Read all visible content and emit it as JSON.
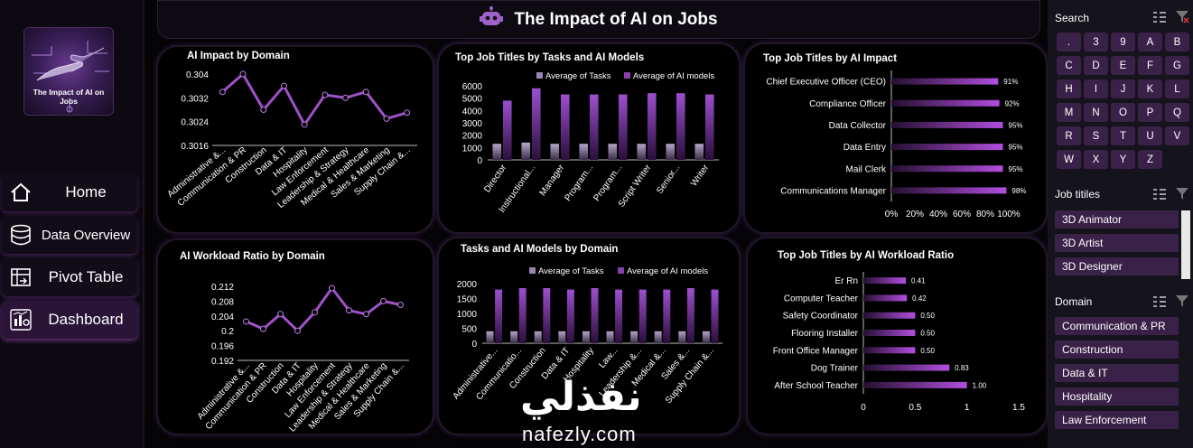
{
  "title": "The Impact of AI on Jobs",
  "logo_text": "The Impact of AI on Jobs",
  "nav": [
    {
      "label": "Home",
      "icon": "home-icon"
    },
    {
      "label": "Data Overview",
      "icon": "database-icon"
    },
    {
      "label": "Pivot Table",
      "icon": "pivot-icon"
    },
    {
      "label": "Dashboard",
      "icon": "dashboard-icon"
    }
  ],
  "slicers": {
    "search": {
      "title": "Search",
      "items": [
        ".",
        "3",
        "9",
        "A",
        "B",
        "C",
        "D",
        "E",
        "F",
        "G",
        "H",
        "I",
        "J",
        "K",
        "L",
        "M",
        "N",
        "O",
        "P",
        "Q",
        "R",
        "S",
        "T",
        "U",
        "V",
        "W",
        "X",
        "Y",
        "Z"
      ]
    },
    "job_titles": {
      "title": "Job titiles",
      "items": [
        "3D Animator",
        "3D Artist",
        "3D Designer"
      ]
    },
    "domain": {
      "title": "Domain",
      "items": [
        "Communication & PR",
        "Construction",
        "Data & IT",
        "Hospitality",
        "Law Enforcement"
      ]
    }
  },
  "watermark": {
    "arabic": "نفذلي",
    "latin": "nafezly.com"
  },
  "chart_data": [
    {
      "id": "impact_domain",
      "type": "line",
      "title": "AI Impact by Domain",
      "categories": [
        "Administrative &...",
        "Communication & PR",
        "Construction",
        "Data & IT",
        "Hospitality",
        "Law Enforcement",
        "Leadership & Strategy",
        "Medical & Healthcare",
        "Sales & Marketing",
        "Supply Chain &..."
      ],
      "values": [
        0.3034,
        0.304,
        0.3028,
        0.3036,
        0.3023,
        0.3033,
        0.3032,
        0.3034,
        0.3025,
        0.3027
      ],
      "ylim": [
        0.3016,
        0.304
      ],
      "yticks": [
        "0.304",
        "0.3032",
        "0.3024",
        "0.3016"
      ],
      "color": "#a050c8"
    },
    {
      "id": "tasks_models_job",
      "type": "bar",
      "title": "Top Job Titles by Tasks and AI Models",
      "categories": [
        "Director",
        "Instructional...",
        "Manager",
        "Program...",
        "Program...",
        "Script Writer",
        "Senior...",
        "Writer"
      ],
      "series": [
        {
          "name": "Average of Tasks",
          "values": [
            1300,
            1400,
            1300,
            1300,
            1300,
            1300,
            1300,
            1300
          ],
          "color": "#9b86b3"
        },
        {
          "name": "Average of AI models",
          "values": [
            4800,
            5800,
            5300,
            5300,
            5300,
            5400,
            5400,
            5300
          ],
          "color": "#8a3fb0"
        }
      ],
      "ylim": [
        0,
        6000
      ],
      "yticks": [
        "6000",
        "5000",
        "4000",
        "3000",
        "2000",
        "1000",
        "0"
      ]
    },
    {
      "id": "impact_job",
      "type": "bar",
      "title": "Top Job Titles by AI Impact",
      "categories": [
        "Chief Executive Officer (CEO)",
        "Compliance Officer",
        "Data Collector",
        "Data Entry",
        "Mail Clerk",
        "Communications Manager"
      ],
      "values": [
        0.91,
        0.92,
        0.95,
        0.95,
        0.95,
        0.98
      ],
      "labels": [
        "91%",
        "92%",
        "95%",
        "95%",
        "95%",
        "98%"
      ],
      "xticks": [
        "0%",
        "20%",
        "40%",
        "60%",
        "80%",
        "100%"
      ],
      "xlim": [
        0,
        1
      ]
    },
    {
      "id": "workload_domain",
      "type": "line",
      "title": "AI Workload Ratio by Domain",
      "categories": [
        "Administrative &...",
        "Communication & PR",
        "Construction",
        "Data & IT",
        "Hospitality",
        "Law Enforcement",
        "Leadership & Strategy",
        "Medical & Healthcare",
        "Sales & Marketing",
        "Supply Chain &..."
      ],
      "values": [
        0.2025,
        0.2005,
        0.2045,
        0.2,
        0.205,
        0.2115,
        0.2055,
        0.2045,
        0.208,
        0.207
      ],
      "ylim": [
        0.192,
        0.212
      ],
      "yticks": [
        "0.212",
        "0.208",
        "0.204",
        "0.2",
        "0.196",
        "0.192"
      ],
      "color": "#a050c8"
    },
    {
      "id": "tasks_models_domain",
      "type": "bar",
      "title": "Tasks and AI Models by Domain",
      "categories": [
        "Administrative...",
        "Communicatio...",
        "Construction",
        "Data & IT",
        "Hospitality",
        "Law...",
        "Leadership &...",
        "Medical &...",
        "Sales &...",
        "Supply Chain &..."
      ],
      "series": [
        {
          "name": "Average of Tasks",
          "values": [
            400,
            400,
            400,
            400,
            400,
            400,
            400,
            400,
            400,
            400
          ],
          "color": "#9b86b3"
        },
        {
          "name": "Average of AI models",
          "values": [
            1800,
            1850,
            1850,
            1800,
            1850,
            1800,
            1800,
            1800,
            1850,
            1800
          ],
          "color": "#8a3fb0"
        }
      ],
      "ylim": [
        0,
        2000
      ],
      "yticks": [
        "2000",
        "1500",
        "1000",
        "500",
        "0"
      ]
    },
    {
      "id": "workload_job",
      "type": "bar",
      "title": "Top Job Titles by AI Workload Ratio",
      "categories": [
        "Er Rn",
        "Computer Teacher",
        "Safety Coordinator",
        "Flooring Installer",
        "Front Office Manager",
        "Dog Trainer",
        "After School Teacher"
      ],
      "values": [
        0.41,
        0.42,
        0.5,
        0.5,
        0.5,
        0.83,
        1.0
      ],
      "labels": [
        "0.41",
        "0.42",
        "0.50",
        "0.50",
        "0.50",
        "0.83",
        "1.00"
      ],
      "xticks": [
        "0",
        "0.5",
        "1",
        "1.5"
      ],
      "xlim": [
        0,
        1.5
      ]
    }
  ]
}
